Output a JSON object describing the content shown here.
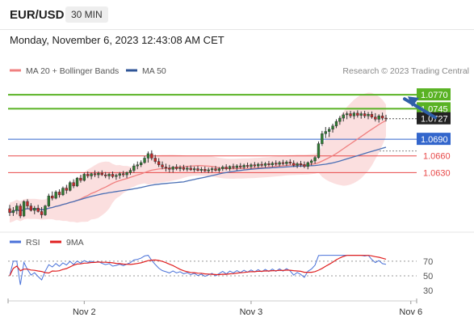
{
  "header": {
    "symbol": "EUR/USD",
    "timeframe": "30 MIN",
    "timestamp": "Monday, November 6, 2023 12:43:08 AM CET"
  },
  "chart_data": {
    "type": "candlestick",
    "instrument": "EUR/USD",
    "interval": "30 MIN",
    "legend": {
      "placement": "top-left",
      "items": [
        {
          "label": "MA 20 + Bollinger Bands",
          "color": "#f08080"
        },
        {
          "label": "MA 50",
          "color": "#2f5597"
        }
      ]
    },
    "credit": "Research © 2023 Trading Central",
    "y_range": [
      1.0533,
      1.0795
    ],
    "levels": [
      {
        "label": "1.0770",
        "value": 1.077,
        "role": "resistance",
        "color": "#59b224"
      },
      {
        "label": "1.0745",
        "value": 1.0745,
        "role": "resistance",
        "color": "#59b224"
      },
      {
        "label": "1.0727",
        "value": 1.0727,
        "role": "last-price",
        "color": "#222222"
      },
      {
        "label": "1.0690",
        "value": 1.069,
        "role": "pivot",
        "color": "#3366cc"
      },
      {
        "label": "1.0660",
        "value": 1.066,
        "role": "support",
        "color": "#e84848"
      },
      {
        "label": "1.0630",
        "value": 1.063,
        "role": "support",
        "color": "#e84848"
      }
    ],
    "x_ticks": [
      {
        "label": "Nov 2",
        "index": 21
      },
      {
        "label": "Nov 3",
        "index": 68
      },
      {
        "label": "Nov 6",
        "index": 113
      }
    ],
    "arrow": {
      "direction": "up",
      "from_index": 119,
      "from_value": 1.0729,
      "to_value": 1.0767
    },
    "candles": [
      [
        1.0565,
        1.0572,
        1.0552,
        1.0558
      ],
      [
        1.0558,
        1.0568,
        1.0552,
        1.0562
      ],
      [
        1.0562,
        1.0575,
        1.0555,
        1.057
      ],
      [
        1.057,
        1.0574,
        1.0548,
        1.0552
      ],
      [
        1.0552,
        1.058,
        1.055,
        1.0578
      ],
      [
        1.0578,
        1.0582,
        1.0565,
        1.057
      ],
      [
        1.057,
        1.0575,
        1.056,
        1.0562
      ],
      [
        1.0562,
        1.057,
        1.0555,
        1.0566
      ],
      [
        1.0566,
        1.0572,
        1.0558,
        1.056
      ],
      [
        1.056,
        1.0568,
        1.0548,
        1.0554
      ],
      [
        1.0554,
        1.0572,
        1.0552,
        1.057
      ],
      [
        1.057,
        1.0592,
        1.0568,
        1.0588
      ],
      [
        1.0588,
        1.0596,
        1.058,
        1.0584
      ],
      [
        1.0584,
        1.0598,
        1.0582,
        1.0595
      ],
      [
        1.0595,
        1.06,
        1.0585,
        1.059
      ],
      [
        1.059,
        1.0605,
        1.0588,
        1.0602
      ],
      [
        1.0602,
        1.0608,
        1.0592,
        1.0598
      ],
      [
        1.0598,
        1.0615,
        1.0596,
        1.0612
      ],
      [
        1.0612,
        1.0618,
        1.0602,
        1.0606
      ],
      [
        1.0606,
        1.0622,
        1.0604,
        1.062
      ],
      [
        1.062,
        1.0626,
        1.0612,
        1.0616
      ],
      [
        1.0616,
        1.063,
        1.0614,
        1.0627
      ],
      [
        1.0627,
        1.0632,
        1.062,
        1.0624
      ],
      [
        1.0624,
        1.063,
        1.0618,
        1.0628
      ],
      [
        1.0628,
        1.0634,
        1.0622,
        1.0626
      ],
      [
        1.0626,
        1.0632,
        1.062,
        1.0629
      ],
      [
        1.0629,
        1.0634,
        1.0624,
        1.0626
      ],
      [
        1.0626,
        1.0631,
        1.062,
        1.0624
      ],
      [
        1.0624,
        1.063,
        1.0618,
        1.0627
      ],
      [
        1.0627,
        1.0632,
        1.062,
        1.0623
      ],
      [
        1.0623,
        1.0628,
        1.0617,
        1.0625
      ],
      [
        1.0625,
        1.0631,
        1.0619,
        1.0628
      ],
      [
        1.0628,
        1.0633,
        1.0622,
        1.0626
      ],
      [
        1.0626,
        1.0632,
        1.062,
        1.063
      ],
      [
        1.063,
        1.0638,
        1.0626,
        1.0634
      ],
      [
        1.0634,
        1.0646,
        1.063,
        1.0642
      ],
      [
        1.0642,
        1.065,
        1.0636,
        1.0644
      ],
      [
        1.0644,
        1.0652,
        1.064,
        1.0648
      ],
      [
        1.0648,
        1.066,
        1.0646,
        1.0656
      ],
      [
        1.0656,
        1.0668,
        1.0648,
        1.0664
      ],
      [
        1.0664,
        1.067,
        1.0652,
        1.0656
      ],
      [
        1.0656,
        1.0662,
        1.0646,
        1.065
      ],
      [
        1.065,
        1.0656,
        1.064,
        1.0644
      ],
      [
        1.0644,
        1.065,
        1.0636,
        1.064
      ],
      [
        1.064,
        1.0646,
        1.0632,
        1.0638
      ],
      [
        1.0638,
        1.0644,
        1.063,
        1.0636
      ],
      [
        1.0636,
        1.0642,
        1.063,
        1.064
      ],
      [
        1.064,
        1.0645,
        1.0634,
        1.0637
      ],
      [
        1.0637,
        1.0643,
        1.0632,
        1.0639
      ],
      [
        1.0639,
        1.0644,
        1.0633,
        1.0636
      ],
      [
        1.0636,
        1.0642,
        1.0632,
        1.0638
      ],
      [
        1.0638,
        1.0643,
        1.0633,
        1.0635
      ],
      [
        1.0635,
        1.0641,
        1.0631,
        1.0637
      ],
      [
        1.0637,
        1.0642,
        1.0632,
        1.0634
      ],
      [
        1.0634,
        1.064,
        1.063,
        1.0636
      ],
      [
        1.0636,
        1.0641,
        1.0631,
        1.0633
      ],
      [
        1.0633,
        1.0639,
        1.0629,
        1.0635
      ],
      [
        1.0635,
        1.064,
        1.063,
        1.0637
      ],
      [
        1.0637,
        1.0642,
        1.0632,
        1.0634
      ],
      [
        1.0634,
        1.064,
        1.063,
        1.0637
      ],
      [
        1.0637,
        1.0643,
        1.0633,
        1.064
      ],
      [
        1.064,
        1.0645,
        1.0634,
        1.0637
      ],
      [
        1.0637,
        1.0643,
        1.0633,
        1.0641
      ],
      [
        1.0641,
        1.0646,
        1.0636,
        1.0639
      ],
      [
        1.0639,
        1.0645,
        1.0634,
        1.0642
      ],
      [
        1.0642,
        1.0647,
        1.0637,
        1.064
      ],
      [
        1.064,
        1.0646,
        1.0636,
        1.0643
      ],
      [
        1.0643,
        1.0648,
        1.0638,
        1.0641
      ],
      [
        1.0641,
        1.0647,
        1.0637,
        1.0644
      ],
      [
        1.0644,
        1.0649,
        1.0639,
        1.0642
      ],
      [
        1.0642,
        1.0648,
        1.0638,
        1.0645
      ],
      [
        1.0645,
        1.065,
        1.064,
        1.0643
      ],
      [
        1.0643,
        1.0649,
        1.0639,
        1.0646
      ],
      [
        1.0646,
        1.0651,
        1.0641,
        1.0644
      ],
      [
        1.0644,
        1.065,
        1.064,
        1.0647
      ],
      [
        1.0647,
        1.0652,
        1.0642,
        1.0645
      ],
      [
        1.0645,
        1.0651,
        1.0641,
        1.0648
      ],
      [
        1.0648,
        1.0653,
        1.0643,
        1.0646
      ],
      [
        1.0646,
        1.0652,
        1.0642,
        1.0649
      ],
      [
        1.0649,
        1.0654,
        1.0644,
        1.0647
      ],
      [
        1.0647,
        1.0652,
        1.064,
        1.0643
      ],
      [
        1.0643,
        1.0649,
        1.0638,
        1.0646
      ],
      [
        1.0646,
        1.0651,
        1.064,
        1.0644
      ],
      [
        1.0644,
        1.065,
        1.0638,
        1.0641
      ],
      [
        1.0641,
        1.065,
        1.0636,
        1.0648
      ],
      [
        1.0648,
        1.0654,
        1.0643,
        1.0651
      ],
      [
        1.0651,
        1.066,
        1.0646,
        1.0657
      ],
      [
        1.0657,
        1.0686,
        1.0655,
        1.0682
      ],
      [
        1.0682,
        1.0705,
        1.0678,
        1.07
      ],
      [
        1.07,
        1.0712,
        1.0692,
        1.0704
      ],
      [
        1.0704,
        1.0712,
        1.0694,
        1.0708
      ],
      [
        1.0708,
        1.0718,
        1.0702,
        1.0714
      ],
      [
        1.0714,
        1.0726,
        1.071,
        1.0722
      ],
      [
        1.0722,
        1.0732,
        1.0716,
        1.0728
      ],
      [
        1.0728,
        1.0738,
        1.0722,
        1.0734
      ],
      [
        1.0734,
        1.074,
        1.0726,
        1.0736
      ],
      [
        1.0736,
        1.0741,
        1.0728,
        1.0732
      ],
      [
        1.0732,
        1.074,
        1.0726,
        1.0737
      ],
      [
        1.0737,
        1.0742,
        1.0729,
        1.0733
      ],
      [
        1.0733,
        1.074,
        1.0727,
        1.0736
      ],
      [
        1.0736,
        1.0741,
        1.0728,
        1.0732
      ],
      [
        1.0732,
        1.0739,
        1.0726,
        1.0735
      ],
      [
        1.0735,
        1.074,
        1.0727,
        1.073
      ],
      [
        1.073,
        1.0737,
        1.0722,
        1.0726
      ],
      [
        1.0726,
        1.0735,
        1.072,
        1.0732
      ],
      [
        1.0732,
        1.0738,
        1.0724,
        1.0728
      ],
      [
        1.0728,
        1.0734,
        1.0722,
        1.0727
      ]
    ],
    "ma20": [],
    "ma50": [],
    "rsi_panel": {
      "legend": [
        {
          "label": "RSI",
          "color": "#4a72d9"
        },
        {
          "label": "9MA",
          "color": "#e02020"
        }
      ],
      "levels": [
        {
          "label": "70",
          "value": 70,
          "style": "dotted"
        },
        {
          "label": "50",
          "value": 50,
          "style": "dotted"
        },
        {
          "label": "30",
          "value": 30,
          "style": "none"
        }
      ],
      "y_range": [
        18,
        82
      ]
    }
  }
}
